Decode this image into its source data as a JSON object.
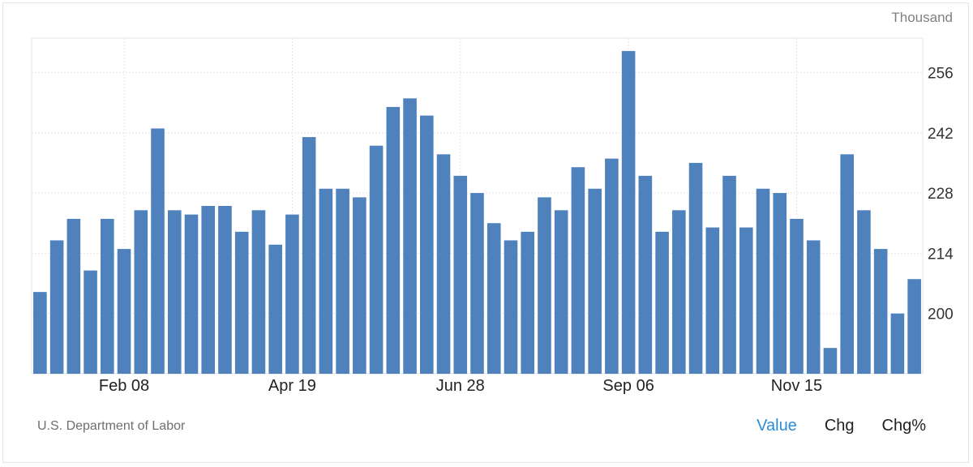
{
  "header": {
    "unit": "Thousand"
  },
  "footer": {
    "source": "U.S. Department of Labor",
    "tabs": [
      {
        "label": "Value",
        "active": true
      },
      {
        "label": "Chg",
        "active": false
      },
      {
        "label": "Chg%",
        "active": false
      }
    ]
  },
  "colors": {
    "bar": "#4f81bd",
    "active_tab": "#2b8cd8",
    "grid": "#e6e6e6"
  },
  "chart_data": {
    "type": "bar",
    "title": "",
    "xlabel": "",
    "ylabel": "Thousand",
    "ylim": [
      186,
      264
    ],
    "yticks": [
      200,
      214,
      228,
      242,
      256
    ],
    "xtick_labels": [
      {
        "label": "Feb 08",
        "index": 5.5
      },
      {
        "label": "Apr 19",
        "index": 15.5
      },
      {
        "label": "Jun 28",
        "index": 25.5
      },
      {
        "label": "Sep 06",
        "index": 35.5
      },
      {
        "label": "Nov 15",
        "index": 45.5
      }
    ],
    "values": [
      205,
      217,
      222,
      210,
      222,
      215,
      224,
      243,
      224,
      223,
      225,
      225,
      219,
      224,
      216,
      223,
      241,
      229,
      229,
      227,
      239,
      248,
      250,
      246,
      237,
      232,
      228,
      221,
      217,
      219,
      227,
      224,
      234,
      229,
      236,
      261,
      232,
      219,
      224,
      235,
      220,
      232,
      220,
      229,
      228,
      222,
      217,
      192,
      237,
      224,
      215,
      200,
      208
    ],
    "grid": true,
    "legend": "none"
  }
}
